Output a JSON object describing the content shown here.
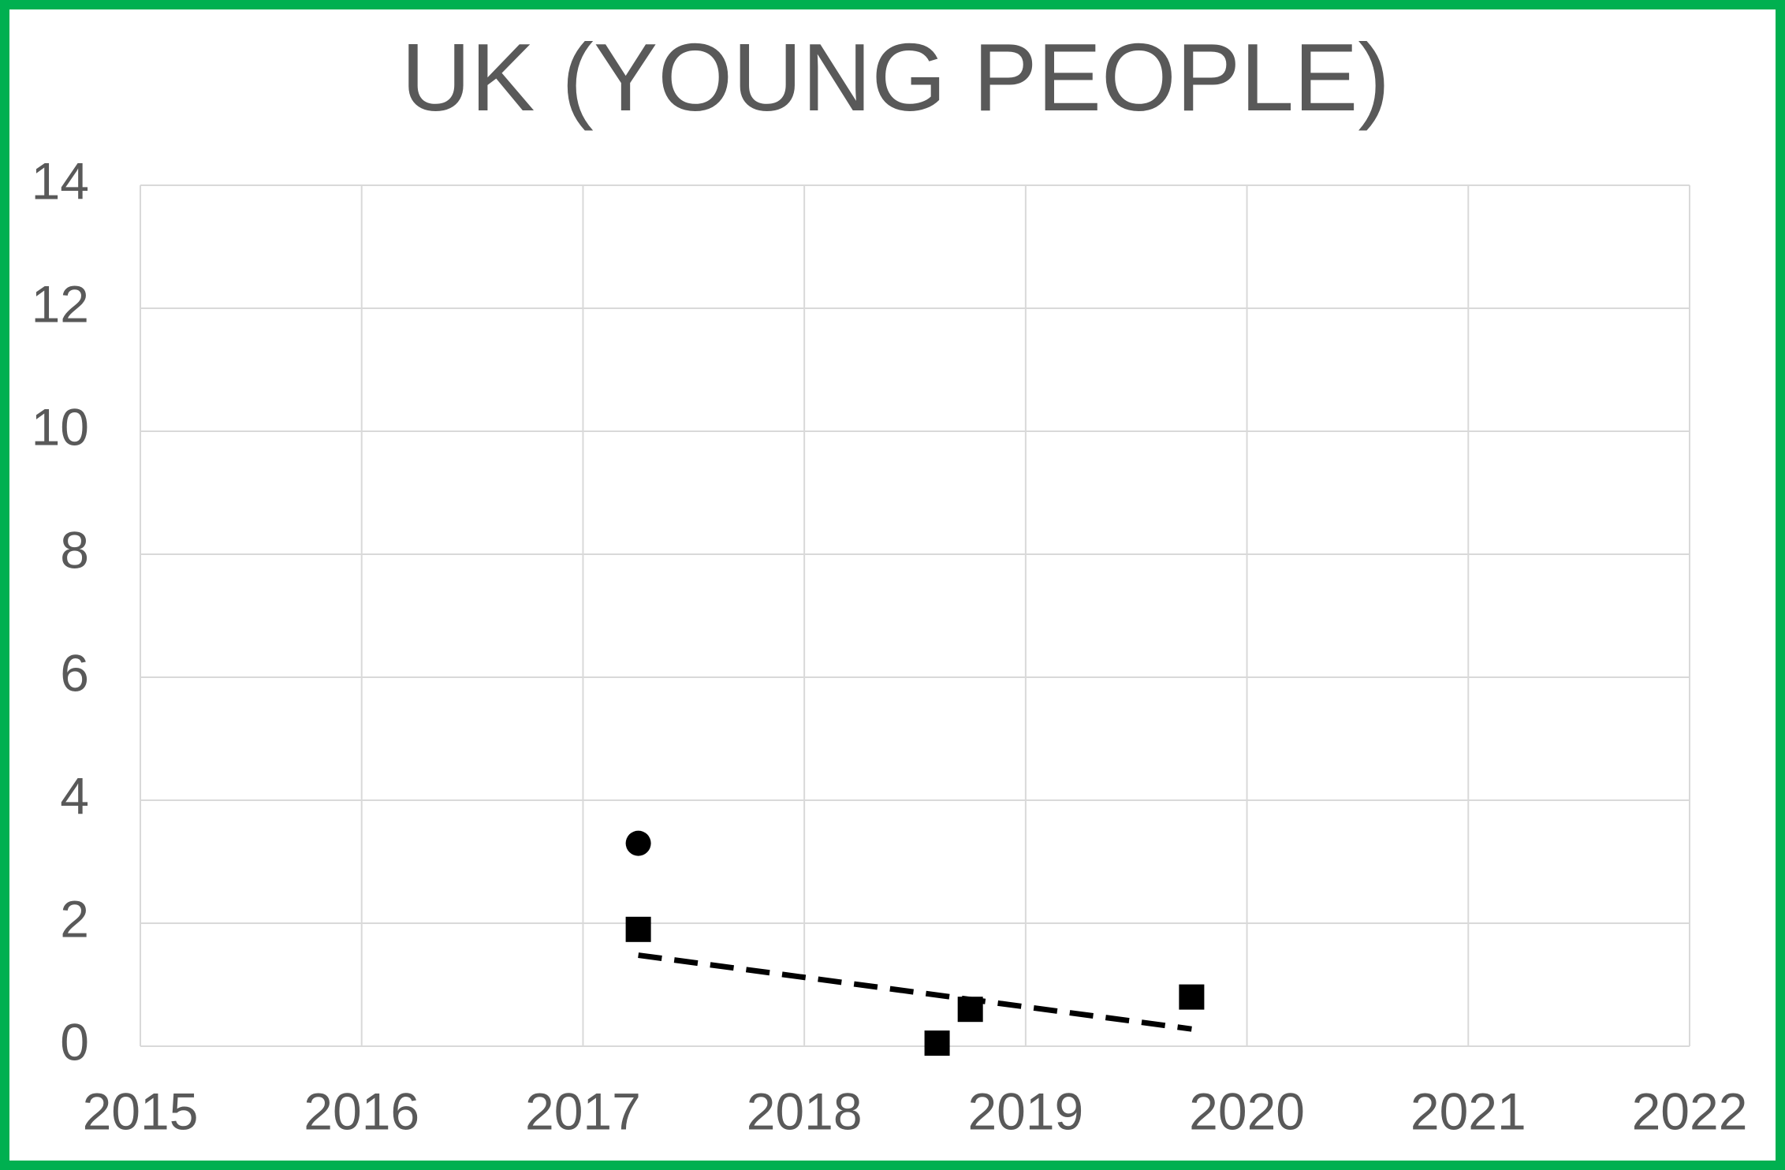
{
  "chart_data": {
    "type": "scatter",
    "title": "UK (YOUNG PEOPLE)",
    "xlim": [
      2015,
      2022
    ],
    "xticks": [
      2015,
      2016,
      2017,
      2018,
      2019,
      2020,
      2021,
      2022
    ],
    "ylim": [
      0,
      14
    ],
    "yticks": [
      0,
      2,
      4,
      6,
      8,
      10,
      12,
      14
    ],
    "grid": true,
    "series": [
      {
        "marker": "circle",
        "color": "#000000",
        "x": [
          2017.25
        ],
        "values": [
          3.3
        ]
      },
      {
        "marker": "square",
        "color": "#000000",
        "x": [
          2017.25,
          2018.6,
          2018.75,
          2019.75
        ],
        "values": [
          1.9,
          0.05,
          0.6,
          0.8
        ]
      }
    ],
    "trendline": {
      "style": "dashed",
      "color": "#000000",
      "x": [
        2017.25,
        2019.75
      ],
      "values": [
        1.48,
        0.28
      ]
    },
    "border_color": "#00b050"
  }
}
